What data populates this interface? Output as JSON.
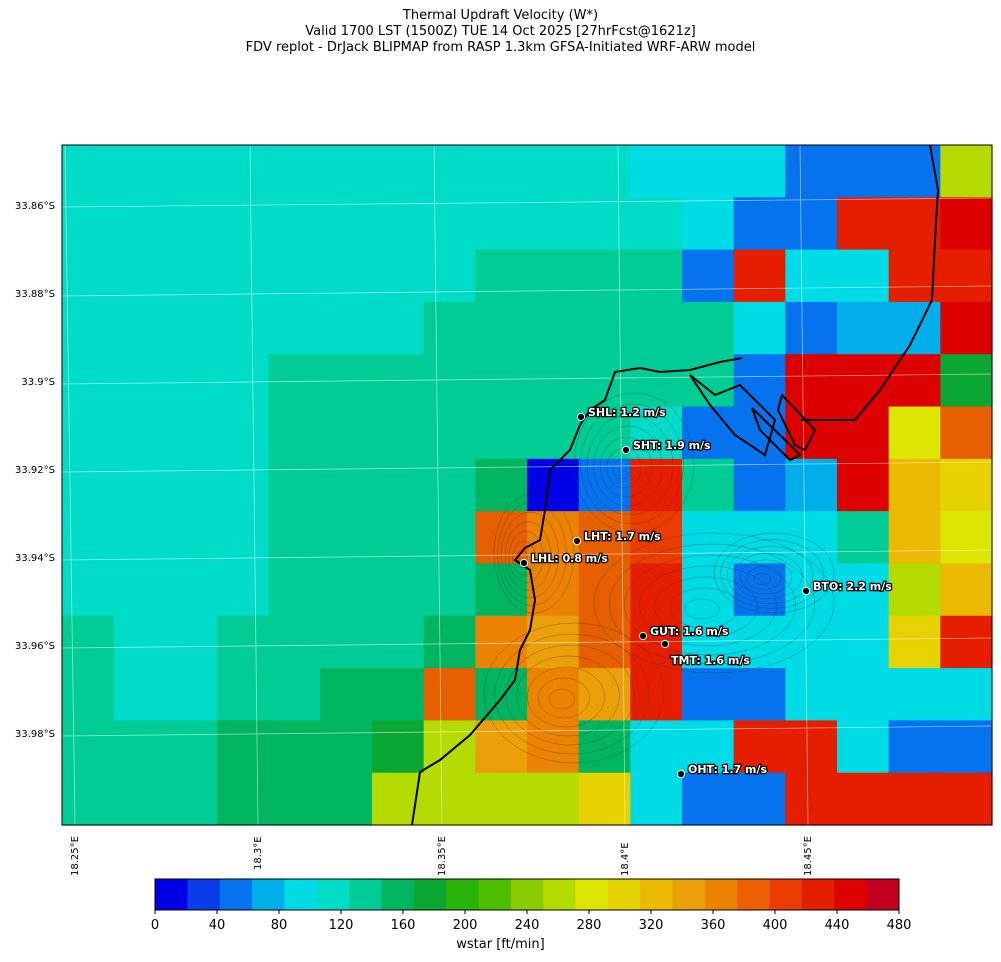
{
  "titles": {
    "line1": "Thermal Updraft Velocity (W*)",
    "line2": "Valid 1700 LST (1500Z) TUE 14 Oct 2025 [27hrFcst@1621z]",
    "line3": "FDV replot - DrJack BLIPMAP from RASP 1.3km GFSA-Initiated WRF-ARW model"
  },
  "axes": {
    "lat_labels": [
      "33.86°S",
      "33.88°S",
      "33.9°S",
      "33.92°S",
      "33.94°S",
      "33.96°S",
      "33.98°S"
    ],
    "lon_labels": [
      "18.25°E",
      "18.3°E",
      "18.35°E",
      "18.4°E",
      "18.45°E"
    ]
  },
  "colorbar": {
    "ticks": [
      "0",
      "40",
      "80",
      "120",
      "160",
      "200",
      "240",
      "280",
      "320",
      "360",
      "400",
      "440",
      "480"
    ],
    "label": "wstar [ft/min]",
    "colors": [
      "#0000e6",
      "#0a3ceb",
      "#0573ee",
      "#00aeea",
      "#00dce6",
      "#00dcc8",
      "#00cd96",
      "#00b55f",
      "#0aa832",
      "#28b40a",
      "#50be00",
      "#87cb00",
      "#b4db00",
      "#dde600",
      "#e6d200",
      "#ebb900",
      "#eba00a",
      "#eb8200",
      "#eb5f00",
      "#eb3c00",
      "#e61e00",
      "#dc0000",
      "#c0001e"
    ]
  },
  "map_data": {
    "grid_cols": 18,
    "grid_rows": 13,
    "cells": [
      "66666666666555444A",
      "666666666666544332",
      "666666667777435533",
      "666666677777754JJ2",
      "66667777777774222K",
      "6666777777764422LP",
      "66667777R14Q74J2MN",
      "66667777PSPO5557GL",
      "66667777RSPQ5455AM",
      "7667777RSTPQ5555B3",
      "7667788PRST3445555",
      "7778889ATS85533544",
      "777888AAAAB5443333"
    ],
    "stations": [
      {
        "name": "SHL",
        "label": "SHL: 1.2 m/s"
      },
      {
        "name": "SHT",
        "label": "SHT: 1.9 m/s"
      },
      {
        "name": "LHT",
        "label": "LHT: 1.7 m/s"
      },
      {
        "name": "LHL",
        "label": "LHL: 0.8 m/s"
      },
      {
        "name": "BTO",
        "label": "BTO: 2.2 m/s"
      },
      {
        "name": "GUT",
        "label": "GUT: 1.6 m/s"
      },
      {
        "name": "TMT",
        "label": "TMT: 1.6 m/s"
      },
      {
        "name": "OHT",
        "label": "OHT: 1.7 m/s"
      }
    ]
  }
}
